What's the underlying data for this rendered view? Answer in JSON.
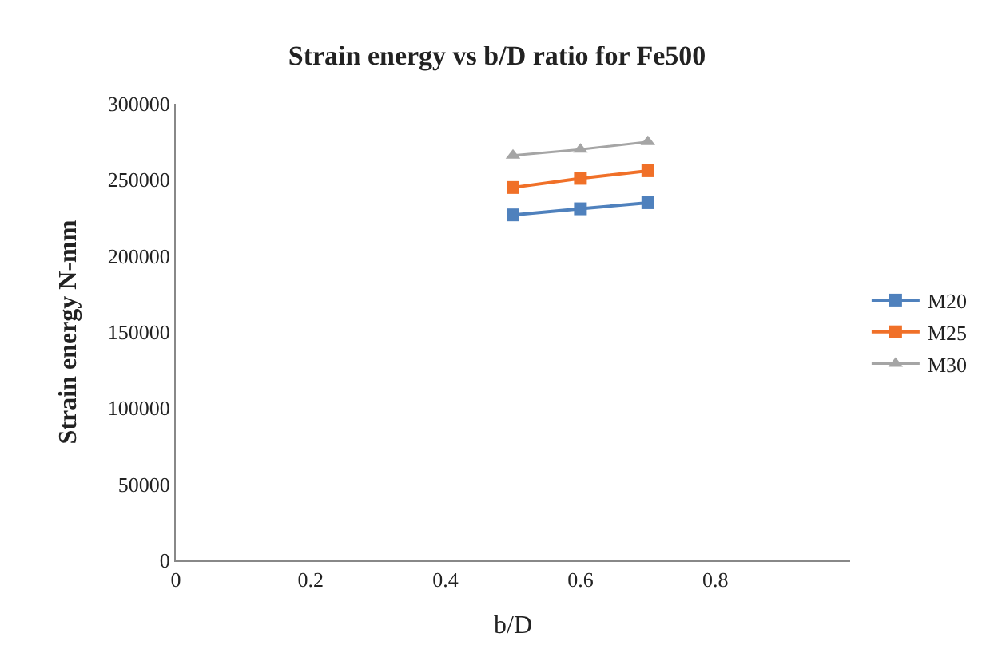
{
  "chart_data": {
    "type": "line",
    "title": "Strain energy vs b/D ratio for Fe500",
    "xlabel": "b/D",
    "ylabel": "Strain energy N-mm",
    "x": [
      0.5,
      0.6,
      0.7
    ],
    "series": [
      {
        "name": "M20",
        "color": "#4f81bd",
        "values": [
          227000,
          231000,
          235000
        ],
        "marker": "square"
      },
      {
        "name": "M25",
        "color": "#f07028",
        "values": [
          245000,
          251000,
          256000
        ],
        "marker": "square"
      },
      {
        "name": "M30",
        "color": "#a5a5a5",
        "values": [
          266000,
          270000,
          275000
        ],
        "marker": "triangle"
      }
    ],
    "xlim": [
      0,
      1
    ],
    "xticks": [
      0,
      0.2,
      0.4,
      0.6,
      0.8
    ],
    "ylim": [
      0,
      300000
    ],
    "yticks": [
      0,
      50000,
      100000,
      150000,
      200000,
      250000,
      300000
    ],
    "legend": "right"
  }
}
